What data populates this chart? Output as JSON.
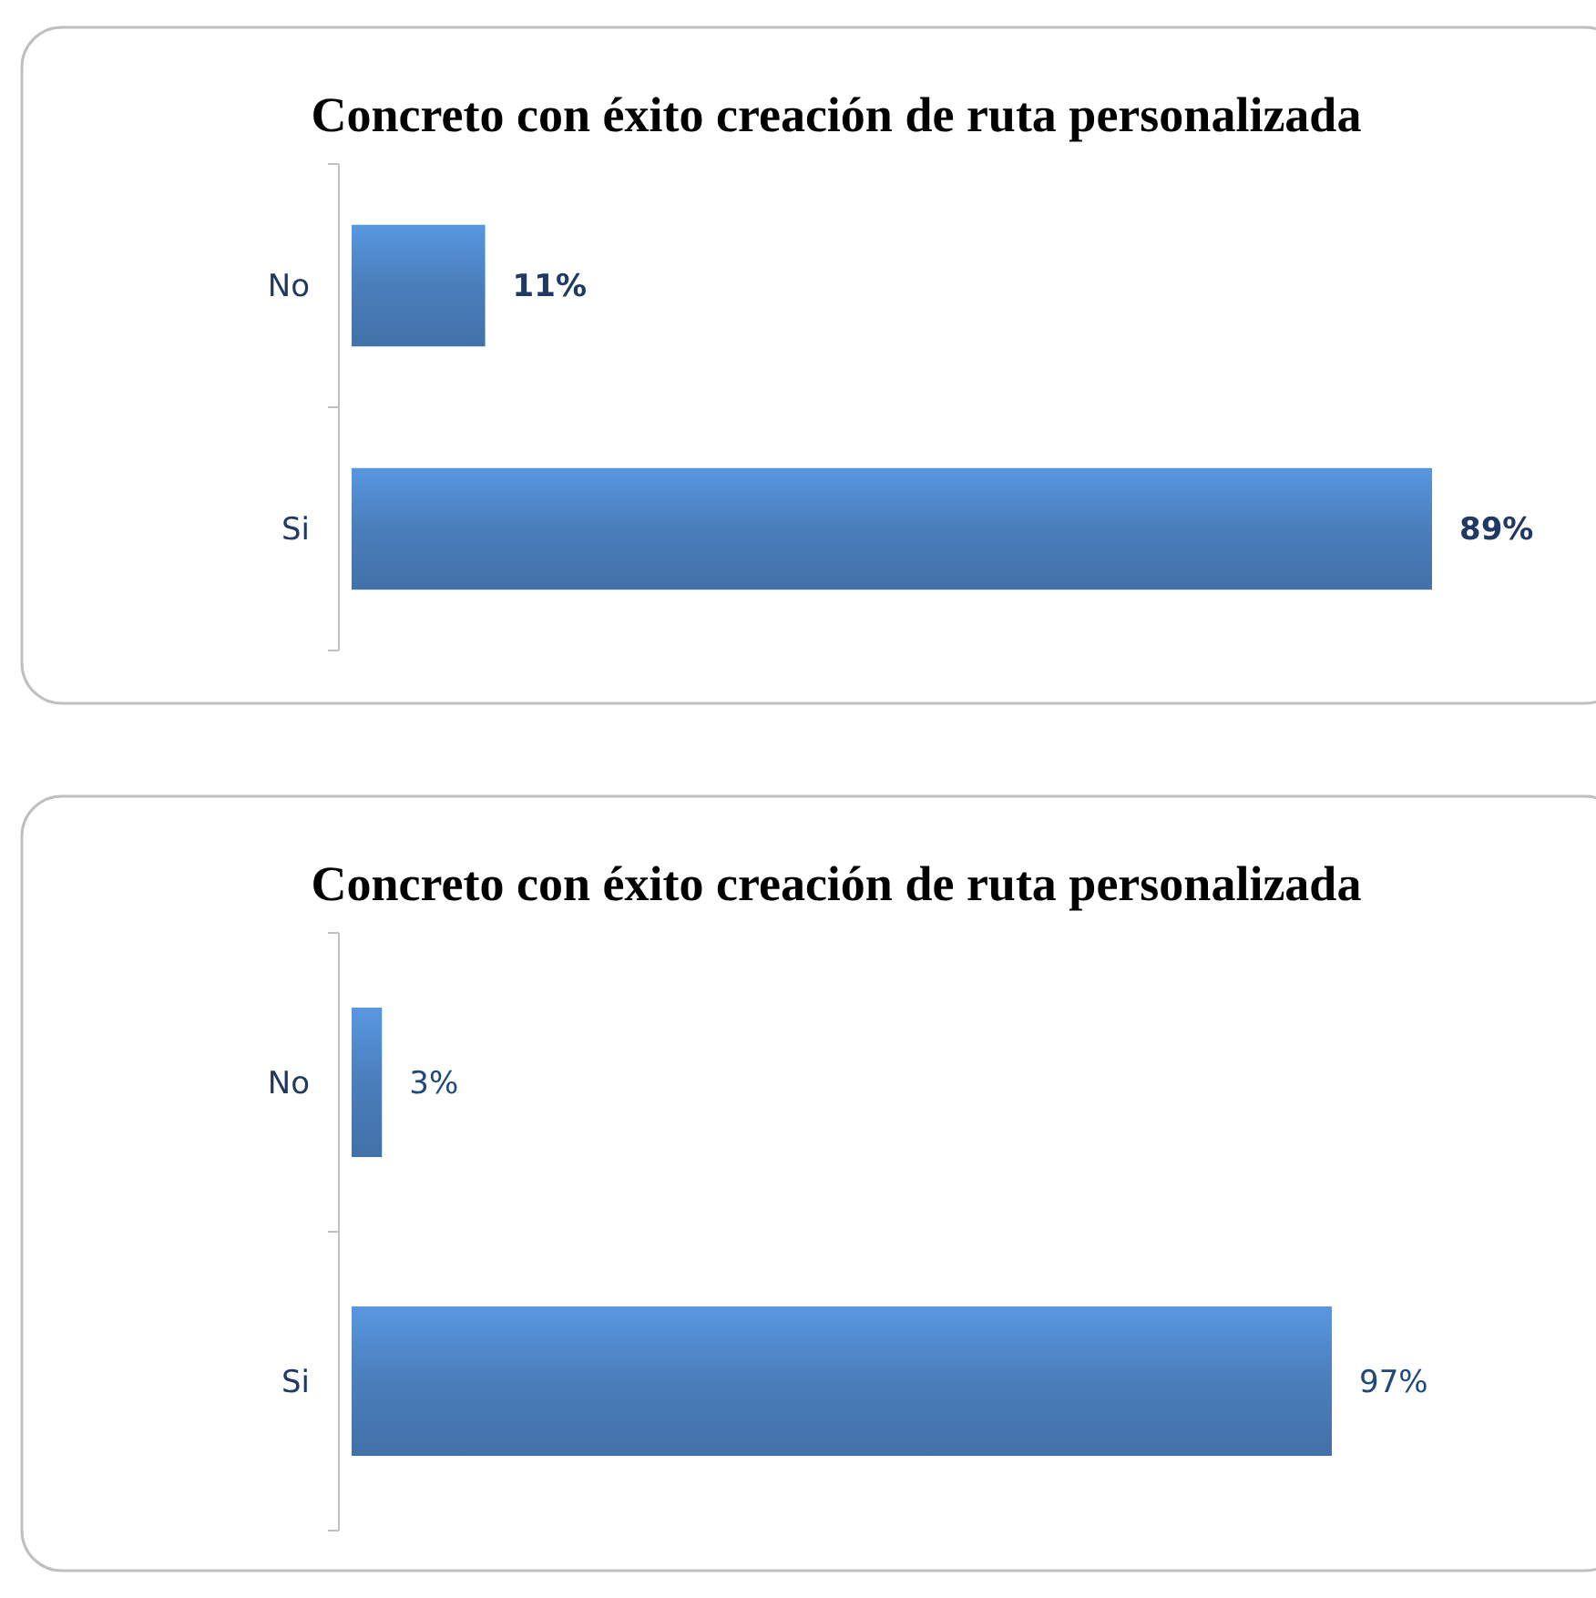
{
  "chart_data": [
    {
      "type": "bar",
      "orientation": "horizontal",
      "title": "Concreto con éxito creación de ruta personalizada",
      "categories": [
        "No",
        "Si"
      ],
      "values": [
        11,
        89
      ],
      "color": "#4a7ebb",
      "value_labels": [
        "11%",
        "89%"
      ],
      "tick_labels": "y"
    },
    {
      "type": "bar",
      "orientation": "horizontal",
      "title": "Concreto con éxito creación de ruta personalizada",
      "categories": [
        "No",
        "Si"
      ],
      "values": [
        3,
        97
      ],
      "color": "#4a7ebb",
      "value_labels": [
        "3%",
        "97%"
      ],
      "tick_labels": "y"
    }
  ]
}
